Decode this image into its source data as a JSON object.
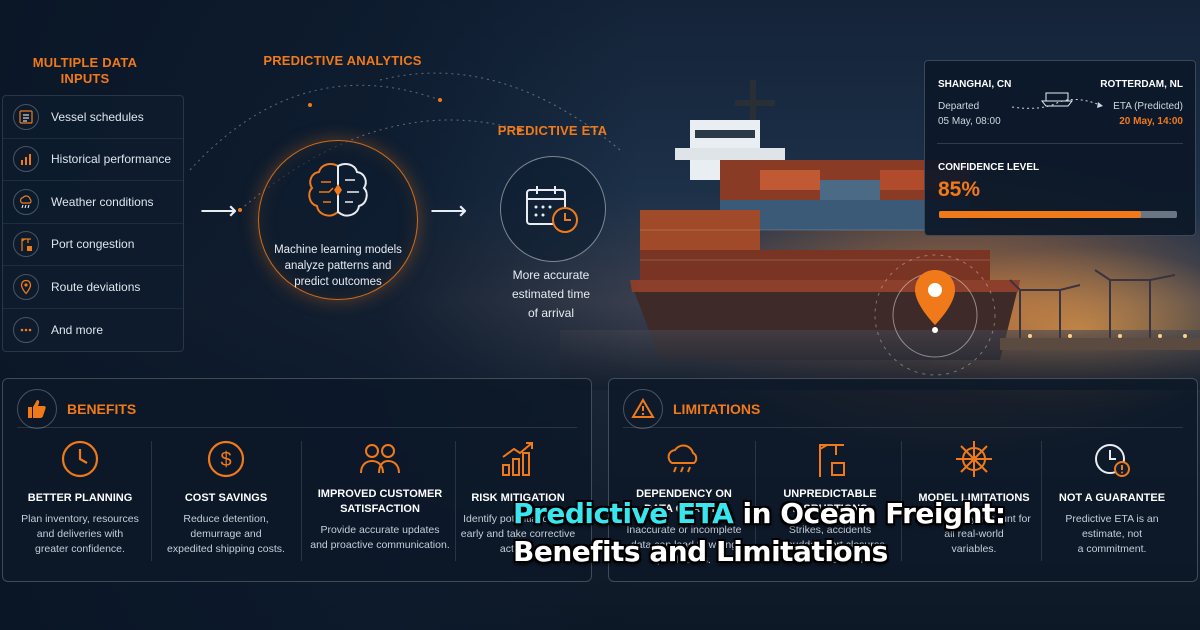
{
  "inputs": {
    "title_line1": "MULTIPLE DATA",
    "title_line2": "INPUTS",
    "items": [
      {
        "label": "Vessel schedules",
        "icon": "calendar-list-icon"
      },
      {
        "label": "Historical performance",
        "icon": "bar-chart-icon"
      },
      {
        "label": "Weather conditions",
        "icon": "cloud-rain-icon"
      },
      {
        "label": "Port congestion",
        "icon": "crane-icon"
      },
      {
        "label": "Route deviations",
        "icon": "map-pin-icon"
      },
      {
        "label": "And more",
        "icon": "more-dots-icon"
      }
    ]
  },
  "analytics": {
    "title": "PREDICTIVE ANALYTICS",
    "text_line1": "Machine learning models",
    "text_line2": "analyze patterns and",
    "text_line3": "predict outcomes",
    "icon": "brain-icon"
  },
  "eta": {
    "title": "PREDICTIVE ETA",
    "text_line1": "More accurate",
    "text_line2": "estimated time",
    "text_line3": "of arrival",
    "icon": "calendar-clock-icon"
  },
  "eta_card": {
    "origin": "SHANGHAI, CN",
    "destination": "ROTTERDAM, NL",
    "departed_label": "Departed",
    "departed_value": "05 May, 08:00",
    "eta_label": "ETA (Predicted)",
    "eta_value": "20 May, 14:00",
    "confidence_label": "CONFIDENCE LEVEL",
    "confidence_value": "85%",
    "confidence_fraction": 0.85,
    "accent": "#f07a1a"
  },
  "benefits": {
    "title": "BENEFITS",
    "items": [
      {
        "title": "BETTER PLANNING",
        "desc1": "Plan inventory, resources",
        "desc2": "and deliveries with",
        "desc3": "greater confidence.",
        "icon": "clock-icon"
      },
      {
        "title": "COST SAVINGS",
        "desc1": "Reduce detention,",
        "desc2": "demurrage and",
        "desc3": "expedited shipping costs.",
        "icon": "dollar-icon"
      },
      {
        "title": "IMPROVED CUSTOMER",
        "title2": "SATISFACTION",
        "desc1": "Provide accurate updates",
        "desc2": "and proactive communication.",
        "icon": "users-icon"
      },
      {
        "title": "RISK MITIGATION",
        "desc1": "Identify potential delays",
        "desc2": "early and take corrective",
        "desc3": "actions.",
        "icon": "trend-chart-icon"
      }
    ]
  },
  "limitations": {
    "title": "LIMITATIONS",
    "items": [
      {
        "title": "DEPENDENCY ON",
        "title2": "DATA QUALITY",
        "desc1": "Inaccurate or incomplete",
        "desc2": "data can lead to wrong",
        "desc3": "predictions.",
        "icon": "cloud-rain-icon"
      },
      {
        "title": "UNPREDICTABLE",
        "title2": "DISRUPTIONS",
        "desc1": "Strikes, accidents",
        "desc2": "or sudden port closures",
        "desc3": "can affect ETA.",
        "icon": "crane-icon"
      },
      {
        "title": "MODEL LIMITATIONS",
        "desc1": "May not fully account for",
        "desc2": "all real-world",
        "desc3": "variables.",
        "icon": "ship-wheel-icon"
      },
      {
        "title": "NOT A GUARANTEE",
        "desc1": "Predictive ETA is an",
        "desc2": "estimate, not",
        "desc3": "a commitment.",
        "icon": "alarm-icon"
      }
    ]
  },
  "headline": {
    "highlight": "Predictive ETA",
    "rest_line1": " in Ocean Freight:",
    "line2": "Benefits and Limitations"
  }
}
